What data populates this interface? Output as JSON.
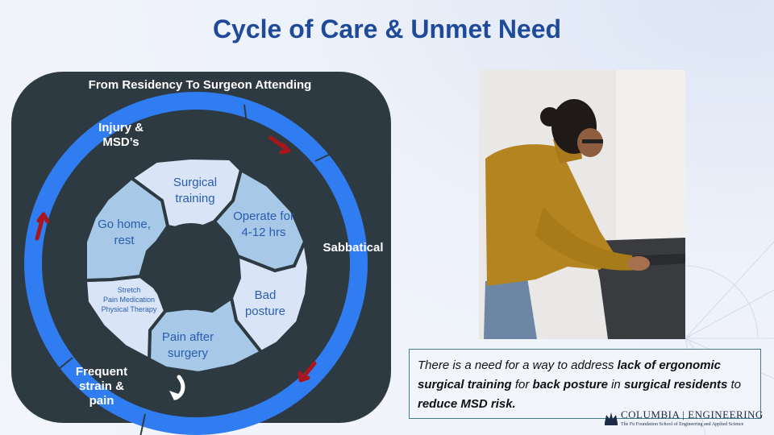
{
  "title": "Cycle of Care & Unmet Need",
  "diagram": {
    "header": "From Residency To Surgeon Attending",
    "outer_labels": {
      "injury": "Injury &\nMSD’s",
      "sabbatical": "Sabbatical",
      "frequent": "Frequent\nstrain &\npain"
    },
    "segments": {
      "surgical_training": "Surgical\ntraining",
      "operate": "Operate for\n4-12 hrs",
      "bad_posture": "Bad\nposture",
      "pain_after": "Pain after\nsurgery",
      "therapy": "Stretch\nPain Medication\nPhysical Therapy",
      "go_home": "Go home,\nrest"
    }
  },
  "need_statement": {
    "p1": "There is a need for a way to address ",
    "b1": "lack of ergonomic surgical training",
    "p2": " for ",
    "b2": "back posture",
    "p3": " in ",
    "b3": "surgical residents",
    "p4": " to ",
    "b4": "reduce MSD risk."
  },
  "logo": {
    "name": "COLUMBIA | ENGINEERING",
    "subtitle": "The Fu Foundation School of Engineering and Applied Science"
  },
  "colors": {
    "title": "#1f4a9a",
    "ring": "#2f7df0",
    "panel": "#2e3a42",
    "arrow": "#a8161c",
    "segment_dark": "#a7c8e6",
    "segment_light": "#d9e5f7"
  }
}
